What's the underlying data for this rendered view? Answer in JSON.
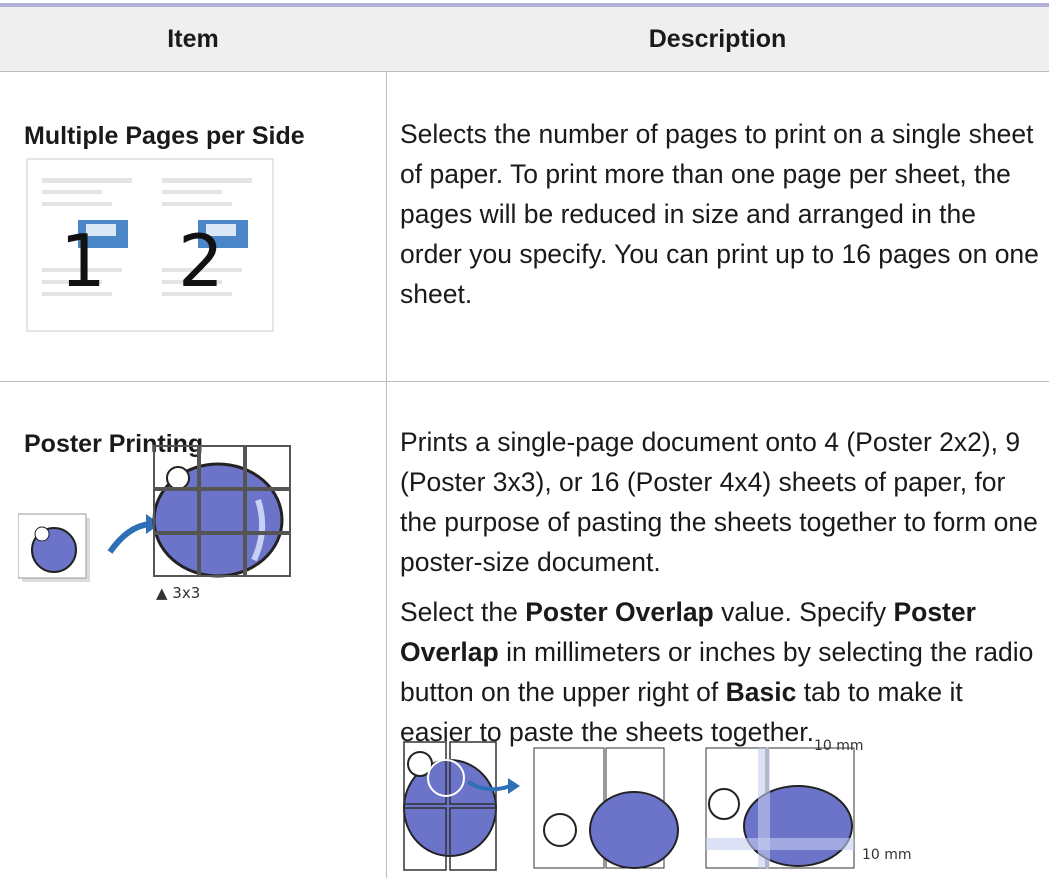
{
  "table": {
    "header": [
      "Item",
      "Description"
    ],
    "rows": [
      {
        "item": "Multiple Pages per Side",
        "image_labels": [
          "1",
          "2"
        ],
        "description": [
          [
            {
              "text": "Selects the number of pages to print on a single sheet of paper. To print more than one page per sheet, the pages will be reduced in size and arranged in the order you specify. You can print up to 16 pages on one sheet."
            }
          ]
        ]
      },
      {
        "item": "Poster Printing",
        "image_labels": [
          "▲ 3x3"
        ],
        "description": [
          [
            {
              "text": "Prints a single-page document onto 4 (Poster 2x2), 9 (Poster 3x3), or 16 (Poster 4x4) sheets of paper, for the purpose of pasting the sheets together to form one poster-size document."
            }
          ],
          [
            {
              "text": "Select the "
            },
            {
              "text": "Poster Overlap",
              "bold": true
            },
            {
              "text": " value. Specify "
            },
            {
              "text": "Poster Overlap",
              "bold": true
            },
            {
              "text": " in millimeters or inches by selecting the radio button on the upper right of "
            },
            {
              "text": "Basic",
              "bold": true
            },
            {
              "text": " tab to make it easier to paste the sheets together."
            }
          ]
        ],
        "overlap_labels": [
          "10 mm",
          "10 mm"
        ]
      }
    ]
  }
}
